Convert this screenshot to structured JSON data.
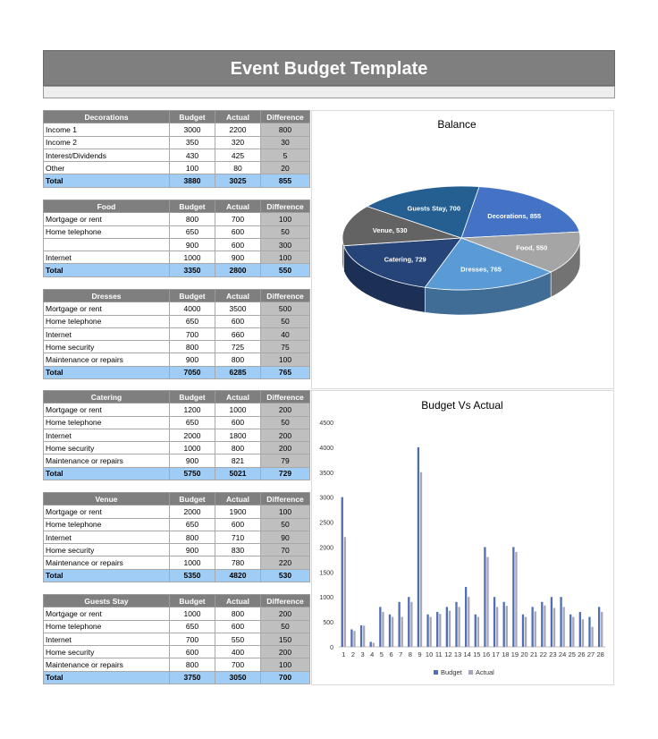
{
  "page": {
    "title": "Event Budget Template"
  },
  "columns": {
    "budget": "Budget",
    "actual": "Actual",
    "difference": "Difference"
  },
  "sections": [
    {
      "name": "Decorations",
      "rows": [
        {
          "label": "Income 1",
          "budget": "3000",
          "actual": "2200",
          "difference": "800"
        },
        {
          "label": "Income 2",
          "budget": "350",
          "actual": "320",
          "difference": "30"
        },
        {
          "label": "Interest/Dividends",
          "budget": "430",
          "actual": "425",
          "difference": "5"
        },
        {
          "label": "Other",
          "budget": "100",
          "actual": "80",
          "difference": "20"
        }
      ],
      "total": {
        "label": "Total",
        "budget": "3880",
        "actual": "3025",
        "difference": "855"
      }
    },
    {
      "name": "Food",
      "rows": [
        {
          "label": "Mortgage or rent",
          "budget": "800",
          "actual": "700",
          "difference": "100"
        },
        {
          "label": "Home telephone",
          "budget": "650",
          "actual": "600",
          "difference": "50"
        },
        {
          "label": "",
          "budget": "900",
          "actual": "600",
          "difference": "300"
        },
        {
          "label": "Internet",
          "budget": "1000",
          "actual": "900",
          "difference": "100"
        }
      ],
      "total": {
        "label": "Total",
        "budget": "3350",
        "actual": "2800",
        "difference": "550"
      }
    },
    {
      "name": "Dresses",
      "rows": [
        {
          "label": "Mortgage or rent",
          "budget": "4000",
          "actual": "3500",
          "difference": "500"
        },
        {
          "label": "Home telephone",
          "budget": "650",
          "actual": "600",
          "difference": "50"
        },
        {
          "label": "Internet",
          "budget": "700",
          "actual": "660",
          "difference": "40"
        },
        {
          "label": "Home security",
          "budget": "800",
          "actual": "725",
          "difference": "75"
        },
        {
          "label": "Maintenance or repairs",
          "budget": "900",
          "actual": "800",
          "difference": "100"
        }
      ],
      "total": {
        "label": "Total",
        "budget": "7050",
        "actual": "6285",
        "difference": "765"
      }
    },
    {
      "name": "Catering",
      "rows": [
        {
          "label": "Mortgage or rent",
          "budget": "1200",
          "actual": "1000",
          "difference": "200"
        },
        {
          "label": "Home telephone",
          "budget": "650",
          "actual": "600",
          "difference": "50"
        },
        {
          "label": "Internet",
          "budget": "2000",
          "actual": "1800",
          "difference": "200"
        },
        {
          "label": "Home security",
          "budget": "1000",
          "actual": "800",
          "difference": "200"
        },
        {
          "label": "Maintenance or repairs",
          "budget": "900",
          "actual": "821",
          "difference": "79"
        }
      ],
      "total": {
        "label": "Total",
        "budget": "5750",
        "actual": "5021",
        "difference": "729"
      }
    },
    {
      "name": "Venue",
      "rows": [
        {
          "label": "Mortgage or rent",
          "budget": "2000",
          "actual": "1900",
          "difference": "100"
        },
        {
          "label": "Home telephone",
          "budget": "650",
          "actual": "600",
          "difference": "50"
        },
        {
          "label": "Internet",
          "budget": "800",
          "actual": "710",
          "difference": "90"
        },
        {
          "label": "Home security",
          "budget": "900",
          "actual": "830",
          "difference": "70"
        },
        {
          "label": "Maintenance or repairs",
          "budget": "1000",
          "actual": "780",
          "difference": "220"
        }
      ],
      "total": {
        "label": "Total",
        "budget": "5350",
        "actual": "4820",
        "difference": "530"
      }
    },
    {
      "name": "Guests Stay",
      "rows": [
        {
          "label": "Mortgage or rent",
          "budget": "1000",
          "actual": "800",
          "difference": "200"
        },
        {
          "label": "Home telephone",
          "budget": "650",
          "actual": "600",
          "difference": "50"
        },
        {
          "label": "Internet",
          "budget": "700",
          "actual": "550",
          "difference": "150"
        },
        {
          "label": "Home security",
          "budget": "600",
          "actual": "400",
          "difference": "200"
        },
        {
          "label": "Maintenance or repairs",
          "budget": "800",
          "actual": "700",
          "difference": "100"
        }
      ],
      "total": {
        "label": "Total",
        "budget": "3750",
        "actual": "3050",
        "difference": "700"
      }
    }
  ],
  "chart_data": [
    {
      "type": "pie",
      "title": "Balance",
      "slices": [
        {
          "label": "Decorations, 855",
          "value": 855,
          "color": "#4472c4"
        },
        {
          "label": "Food, 550",
          "value": 550,
          "color": "#a5a5a5"
        },
        {
          "label": "Dresses, 765",
          "value": 765,
          "color": "#5b9bd5"
        },
        {
          "label": "Catering, 729",
          "value": 729,
          "color": "#264478"
        },
        {
          "label": "Venue, 530",
          "value": 530,
          "color": "#636363"
        },
        {
          "label": "Guests Stay, 700",
          "value": 700,
          "color": "#255e91"
        }
      ]
    },
    {
      "type": "bar",
      "title": "Budget Vs Actual",
      "categories": [
        "1",
        "2",
        "3",
        "4",
        "5",
        "6",
        "7",
        "8",
        "9",
        "10",
        "11",
        "12",
        "13",
        "14",
        "15",
        "16",
        "17",
        "18",
        "19",
        "20",
        "21",
        "22",
        "23",
        "24",
        "25",
        "26",
        "27",
        "28"
      ],
      "series": [
        {
          "name": "Budget",
          "color": "#4f6fb3",
          "values": [
            3000,
            350,
            430,
            100,
            800,
            650,
            900,
            1000,
            4000,
            650,
            700,
            800,
            900,
            1200,
            650,
            2000,
            1000,
            900,
            2000,
            650,
            800,
            900,
            1000,
            1000,
            650,
            700,
            600,
            800
          ]
        },
        {
          "name": "Actual",
          "color": "#a6a6b8",
          "values": [
            2200,
            320,
            425,
            80,
            700,
            600,
            600,
            900,
            3500,
            600,
            660,
            725,
            800,
            1000,
            600,
            1800,
            800,
            821,
            1900,
            600,
            710,
            830,
            780,
            800,
            600,
            550,
            400,
            700
          ]
        }
      ],
      "yticks": [
        "0",
        "500",
        "1000",
        "1500",
        "2000",
        "2500",
        "3000",
        "3500",
        "4000",
        "4500"
      ],
      "ylim": [
        0,
        4500
      ],
      "legend": "bottom"
    }
  ]
}
